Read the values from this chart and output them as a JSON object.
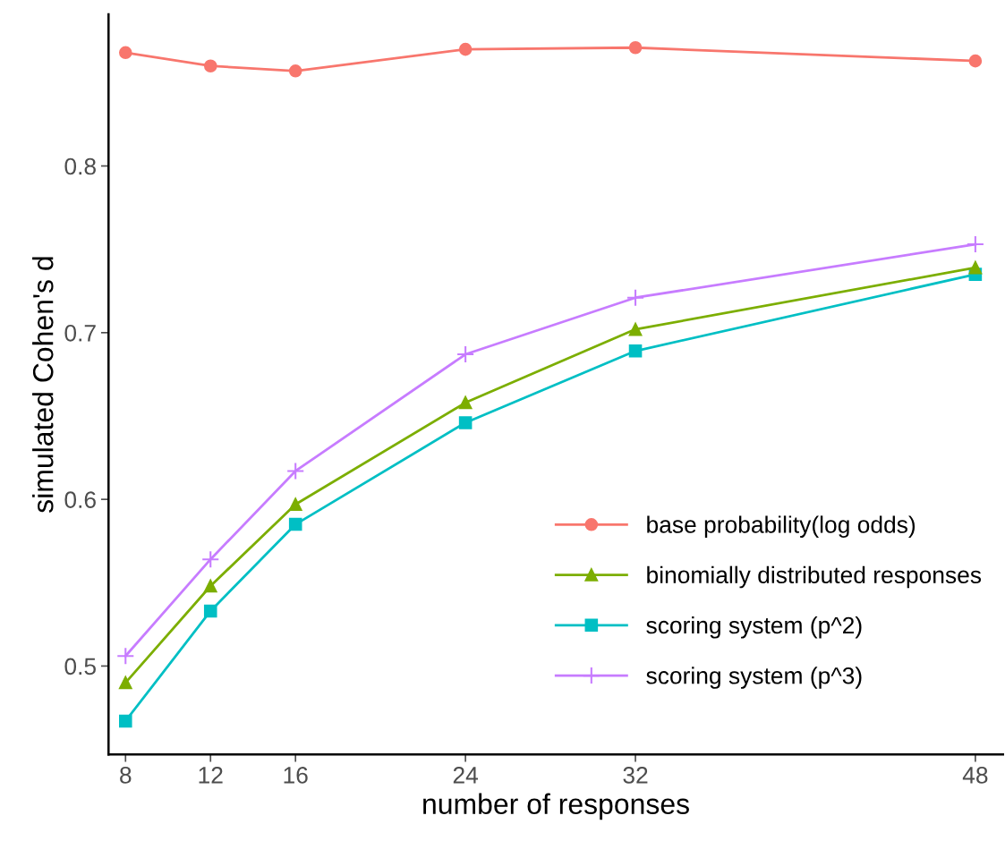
{
  "chart_data": {
    "type": "line",
    "xlabel": "number of responses",
    "ylabel": "simulated Cohen's d",
    "x": [
      8,
      12,
      16,
      24,
      32,
      48
    ],
    "series": [
      {
        "name": "base probability(log odds)",
        "color": "#f8766d",
        "marker": "circle",
        "values": [
          0.868,
          0.86,
          0.857,
          0.87,
          0.871,
          0.863
        ]
      },
      {
        "name": "binomially distributed responses",
        "color": "#7cae00",
        "marker": "triangle",
        "values": [
          0.49,
          0.548,
          0.597,
          0.658,
          0.702,
          0.739
        ]
      },
      {
        "name": "scoring system (p^2)",
        "color": "#00bfc4",
        "marker": "square",
        "values": [
          0.467,
          0.533,
          0.585,
          0.646,
          0.689,
          0.735
        ]
      },
      {
        "name": "scoring system (p^3)",
        "color": "#c77cff",
        "marker": "cross",
        "values": [
          0.506,
          0.564,
          0.617,
          0.687,
          0.721,
          0.753
        ]
      }
    ],
    "xlim": [
      7.2,
      49.3
    ],
    "xticks": [
      8,
      12,
      16,
      24,
      32,
      48
    ],
    "ylim": [
      0.447,
      0.891
    ],
    "yticks": [
      0.5,
      0.6,
      0.7,
      0.8
    ],
    "grid": false,
    "legend": "bottom right",
    "line_style": "solid"
  }
}
